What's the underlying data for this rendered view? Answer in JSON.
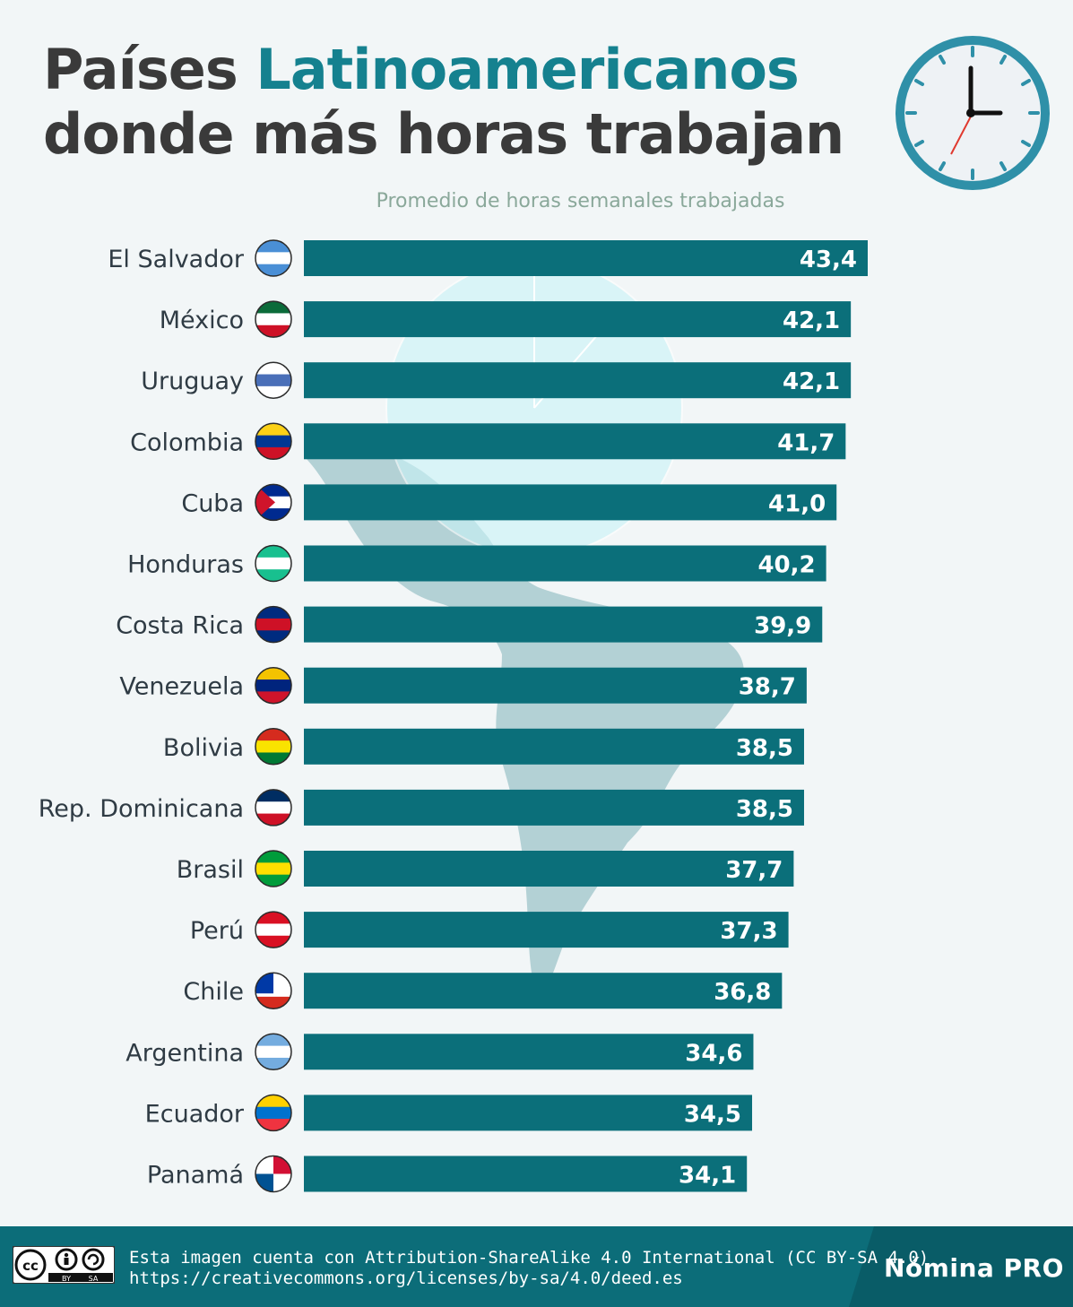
{
  "header": {
    "title_part1": "Países ",
    "title_accent": "Latinoamericanos",
    "title_line2": "donde más horas trabajan",
    "clock_icon": "clock-icon"
  },
  "colors": {
    "bar": "#0b6f7a",
    "accent": "#15818f",
    "title": "#3a3a3a",
    "subtitle": "#8aa89a",
    "footer": "#0c6d79"
  },
  "chart_data": {
    "type": "bar",
    "orientation": "horizontal",
    "subtitle": "Promedio de horas semanales trabajadas",
    "categories": [
      "El Salvador",
      "México",
      "Uruguay",
      "Colombia",
      "Cuba",
      "Honduras",
      "Costa Rica",
      "Venezuela",
      "Bolivia",
      "Rep. Dominicana",
      "Brasil",
      "Perú",
      "Chile",
      "Argentina",
      "Ecuador",
      "Panamá"
    ],
    "values": [
      43.4,
      42.1,
      42.1,
      41.7,
      41.0,
      40.2,
      39.9,
      38.7,
      38.5,
      38.5,
      37.7,
      37.3,
      36.8,
      34.6,
      34.5,
      34.1
    ],
    "value_labels": [
      "43,4",
      "42,1",
      "42,1",
      "41,7",
      "41,0",
      "40,2",
      "39,9",
      "38,7",
      "38,5",
      "38,5",
      "37,7",
      "37,3",
      "36,8",
      "34,6",
      "34,5",
      "34,1"
    ],
    "flag_icons": [
      "el-salvador-flag-icon",
      "mexico-flag-icon",
      "uruguay-flag-icon",
      "colombia-flag-icon",
      "cuba-flag-icon",
      "honduras-flag-icon",
      "costa-rica-flag-icon",
      "venezuela-flag-icon",
      "bolivia-flag-icon",
      "dominican-republic-flag-icon",
      "brazil-flag-icon",
      "peru-flag-icon",
      "chile-flag-icon",
      "argentina-flag-icon",
      "ecuador-flag-icon",
      "panama-flag-icon"
    ],
    "xlim": [
      0,
      43.4
    ],
    "grid": false,
    "legend": "none"
  },
  "footer": {
    "cc_icon": "creative-commons-by-sa-icon",
    "license_line1": "Esta imagen cuenta con Attribution-ShareAlike 4.0 International (CC BY-SA 4.0)",
    "license_line2": "https://creativecommons.org/licenses/by-sa/4.0/deed.es",
    "brand": "Nómina PRO"
  }
}
